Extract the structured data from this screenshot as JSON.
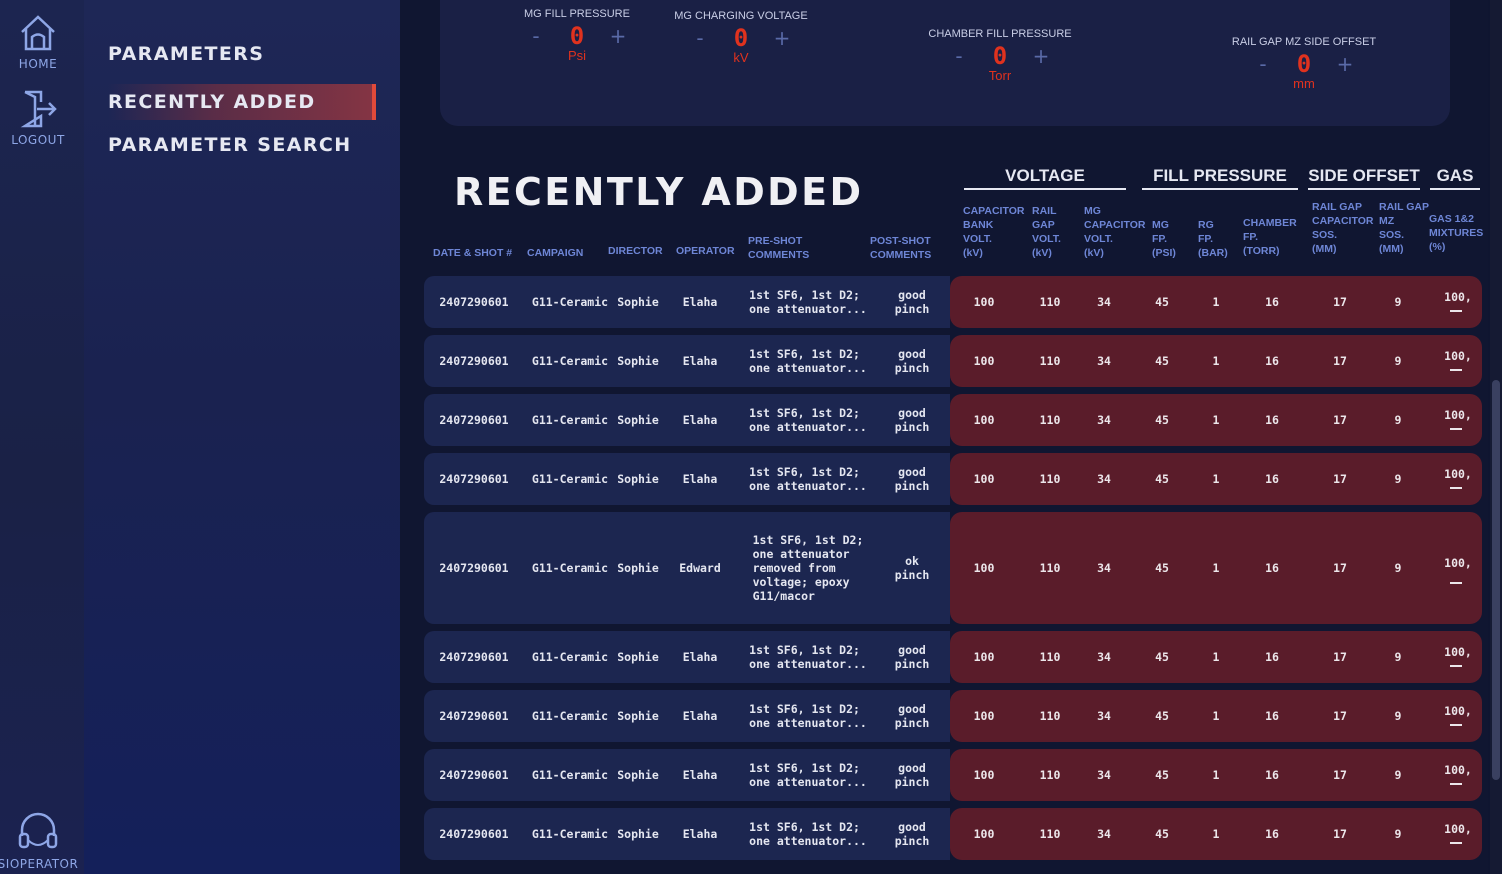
{
  "rail": {
    "home_label": "HOME",
    "logout_label": "LOGOUT",
    "operator_label": "SIOPERATOR"
  },
  "nav": {
    "items": [
      {
        "label": "PARAMETERS"
      },
      {
        "label": "RECENTLY ADDED"
      },
      {
        "label": "PARAMETER SEARCH"
      }
    ]
  },
  "controls": [
    {
      "label": "MG FILL PRESSURE",
      "minus": "-",
      "value": "0",
      "plus": "+",
      "unit": "Psi"
    },
    {
      "label": "MG CHARGING VOLTAGE",
      "minus": "-",
      "value": "0",
      "plus": "+",
      "unit": "kV"
    },
    {
      "label": "CHAMBER FILL PRESSURE",
      "minus": "-",
      "value": "0",
      "plus": "+",
      "unit": "Torr"
    },
    {
      "label": "RAIL GAP MZ SIDE OFFSET",
      "minus": "-",
      "value": "0",
      "plus": "+",
      "unit": "mm"
    }
  ],
  "page_title": "RECENTLY ADDED",
  "groups": [
    "VOLTAGE",
    "FILL PRESSURE",
    "SIDE OFFSET",
    "GAS"
  ],
  "columns": [
    "DATE & SHOT #",
    "CAMPAIGN",
    "DIRECTOR",
    "OPERATOR",
    "PRE-SHOT\nCOMMENTS",
    "POST-SHOT\nCOMMENTS",
    "CAPACITOR\nBANK\nVOLT.\n(kV)",
    "RAIL\nGAP\nVOLT.\n(kV)",
    "MG\nCAPACITOR\nVOLT.\n(kV)",
    "MG\nFP.\n(PSI)",
    "RG\nFP.\n(BAR)",
    "CHAMBER\nFP.\n(TORR)",
    "RAIL GAP\nCAPACITOR\nSOS.\n(MM)",
    "RAIL GAP\nMZ\nSOS.\n(MM)",
    "GAS 1&2\nMIXTURES\n(%)"
  ],
  "rows": [
    {
      "date": "2407290601",
      "campaign": "G11-Ceramic",
      "director": "Sophie",
      "operator": "Elaha",
      "pre": "1st SF6, 1st D2;\none attenuator...",
      "post": "good pinch",
      "cap_v": "100",
      "rg_v": "110",
      "mg_v": "34",
      "mg_fp": "45",
      "rg_fp": "1",
      "ch_fp": "16",
      "rg_sos": "17",
      "mz_sos": "9",
      "gas": "100,"
    },
    {
      "date": "2407290601",
      "campaign": "G11-Ceramic",
      "director": "Sophie",
      "operator": "Elaha",
      "pre": "1st SF6, 1st D2;\none attenuator...",
      "post": "good pinch",
      "cap_v": "100",
      "rg_v": "110",
      "mg_v": "34",
      "mg_fp": "45",
      "rg_fp": "1",
      "ch_fp": "16",
      "rg_sos": "17",
      "mz_sos": "9",
      "gas": "100,"
    },
    {
      "date": "2407290601",
      "campaign": "G11-Ceramic",
      "director": "Sophie",
      "operator": "Elaha",
      "pre": "1st SF6, 1st D2;\none attenuator...",
      "post": "good pinch",
      "cap_v": "100",
      "rg_v": "110",
      "mg_v": "34",
      "mg_fp": "45",
      "rg_fp": "1",
      "ch_fp": "16",
      "rg_sos": "17",
      "mz_sos": "9",
      "gas": "100,"
    },
    {
      "date": "2407290601",
      "campaign": "G11-Ceramic",
      "director": "Sophie",
      "operator": "Elaha",
      "pre": "1st SF6, 1st D2;\none attenuator...",
      "post": "good pinch",
      "cap_v": "100",
      "rg_v": "110",
      "mg_v": "34",
      "mg_fp": "45",
      "rg_fp": "1",
      "ch_fp": "16",
      "rg_sos": "17",
      "mz_sos": "9",
      "gas": "100,"
    },
    {
      "date": "2407290601",
      "campaign": "G11-Ceramic",
      "director": "Sophie",
      "operator": "Edward",
      "pre": "1st SF6, 1st D2;\none attenuator\nremoved from\nvoltage; epoxy\nG11/macor",
      "post": "ok pinch",
      "cap_v": "100",
      "rg_v": "110",
      "mg_v": "34",
      "mg_fp": "45",
      "rg_fp": "1",
      "ch_fp": "16",
      "rg_sos": "17",
      "mz_sos": "9",
      "gas": "100,"
    },
    {
      "date": "2407290601",
      "campaign": "G11-Ceramic",
      "director": "Sophie",
      "operator": "Elaha",
      "pre": "1st SF6, 1st D2;\none attenuator...",
      "post": "good pinch",
      "cap_v": "100",
      "rg_v": "110",
      "mg_v": "34",
      "mg_fp": "45",
      "rg_fp": "1",
      "ch_fp": "16",
      "rg_sos": "17",
      "mz_sos": "9",
      "gas": "100,"
    },
    {
      "date": "2407290601",
      "campaign": "G11-Ceramic",
      "director": "Sophie",
      "operator": "Elaha",
      "pre": "1st SF6, 1st D2;\none attenuator...",
      "post": "good pinch",
      "cap_v": "100",
      "rg_v": "110",
      "mg_v": "34",
      "mg_fp": "45",
      "rg_fp": "1",
      "ch_fp": "16",
      "rg_sos": "17",
      "mz_sos": "9",
      "gas": "100,"
    },
    {
      "date": "2407290601",
      "campaign": "G11-Ceramic",
      "director": "Sophie",
      "operator": "Elaha",
      "pre": "1st SF6, 1st D2;\none attenuator...",
      "post": "good pinch",
      "cap_v": "100",
      "rg_v": "110",
      "mg_v": "34",
      "mg_fp": "45",
      "rg_fp": "1",
      "ch_fp": "16",
      "rg_sos": "17",
      "mz_sos": "9",
      "gas": "100,"
    },
    {
      "date": "2407290601",
      "campaign": "G11-Ceramic",
      "director": "Sophie",
      "operator": "Elaha",
      "pre": "1st SF6, 1st D2;\none attenuator...",
      "post": "good pinch",
      "cap_v": "100",
      "rg_v": "110",
      "mg_v": "34",
      "mg_fp": "45",
      "rg_fp": "1",
      "ch_fp": "16",
      "rg_sos": "17",
      "mz_sos": "9",
      "gas": "100,"
    }
  ],
  "colors": {
    "accent_red": "#e0321e",
    "row_left": "#1c2650",
    "row_right": "#5a1c2a",
    "nav_active_border": "#e04a3a"
  },
  "icons": [
    "home-icon",
    "logout-icon",
    "headset-icon"
  ]
}
